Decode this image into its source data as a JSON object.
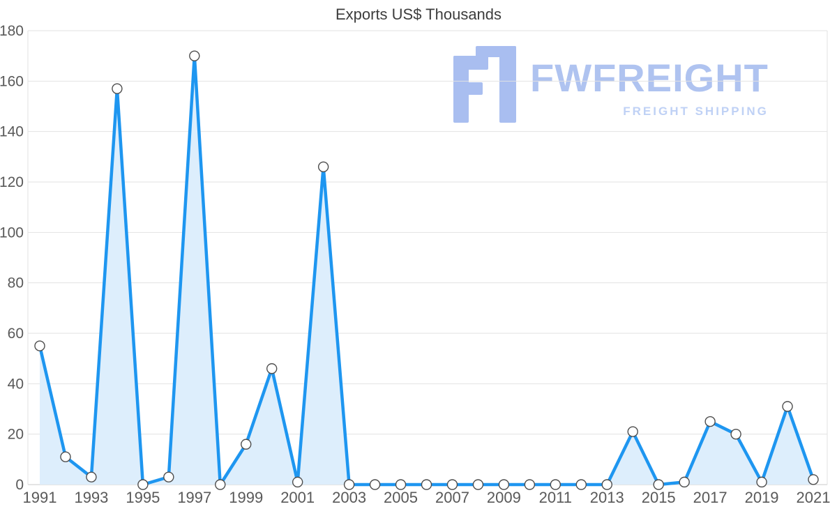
{
  "chart_data": {
    "type": "area",
    "title": "Exports US$ Thousands",
    "xlabel": "",
    "ylabel": "",
    "x": [
      1991,
      1992,
      1993,
      1994,
      1995,
      1996,
      1997,
      1998,
      1999,
      2000,
      2001,
      2002,
      2003,
      2004,
      2005,
      2006,
      2007,
      2008,
      2009,
      2010,
      2011,
      2012,
      2013,
      2014,
      2015,
      2016,
      2017,
      2018,
      2019,
      2020,
      2021
    ],
    "values": [
      55,
      11,
      3,
      157,
      0,
      3,
      170,
      0,
      16,
      46,
      1,
      126,
      0,
      0,
      0,
      0,
      0,
      0,
      0,
      0,
      0,
      0,
      0,
      21,
      0,
      1,
      25,
      20,
      1,
      31,
      2
    ],
    "ylim": [
      0,
      180
    ],
    "yticks": [
      0,
      20,
      40,
      60,
      80,
      100,
      120,
      140,
      160,
      180
    ],
    "xtick_labels": [
      "1991",
      "1993",
      "1995",
      "1997",
      "1999",
      "2001",
      "2003",
      "2005",
      "2007",
      "2009",
      "2011",
      "2013",
      "2015",
      "2017",
      "2019",
      "2021"
    ],
    "grid": true,
    "legend": "none",
    "line_color": "#1e96f0",
    "fill_color": "#ddeefc",
    "marker_fill": "#ffffff",
    "marker_stroke": "#4d4d4d",
    "grid_color": "#e2e2e2",
    "axis_text_color": "#595959"
  },
  "watermark": {
    "brand": "FWFREIGHT",
    "tagline": "FREIGHT SHIPPING",
    "logo_color": "#a9bef0"
  }
}
